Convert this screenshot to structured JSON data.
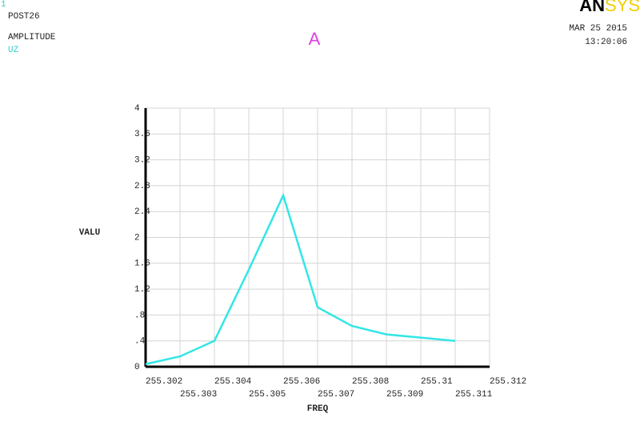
{
  "chart_data": {
    "type": "line",
    "title": "A",
    "window_number": "1",
    "header_lines": [
      "POST26",
      "AMPLITUDE"
    ],
    "variable": "UZ",
    "logo": [
      "AN",
      "SYS"
    ],
    "date": "MAR 25 2015",
    "time": "13:20:06",
    "xlabel": "FREQ",
    "ylabel": "VALU",
    "x": [
      255.302,
      255.303,
      255.304,
      255.305,
      255.306,
      255.307,
      255.308,
      255.309,
      255.31,
      255.311
    ],
    "series": [
      {
        "color": "#33e6e6",
        "values": [
          0.04,
          0.16,
          0.4,
          1.5,
          2.65,
          0.92,
          0.63,
          0.5,
          0.45,
          0.4
        ]
      }
    ],
    "xlim": [
      255.302,
      255.312
    ],
    "xticks": [
      255.302,
      255.303,
      255.304,
      255.305,
      255.306,
      255.307,
      255.308,
      255.309,
      255.31,
      255.311,
      255.312
    ],
    "ylim": [
      0,
      4
    ],
    "yticks": [
      0,
      {
        "value": 0.4,
        "label": ".4"
      },
      {
        "value": 0.8,
        "label": ".8"
      },
      1.2,
      1.6,
      2,
      2.4,
      2.8,
      3.2,
      3.6,
      4
    ],
    "grid": true
  }
}
